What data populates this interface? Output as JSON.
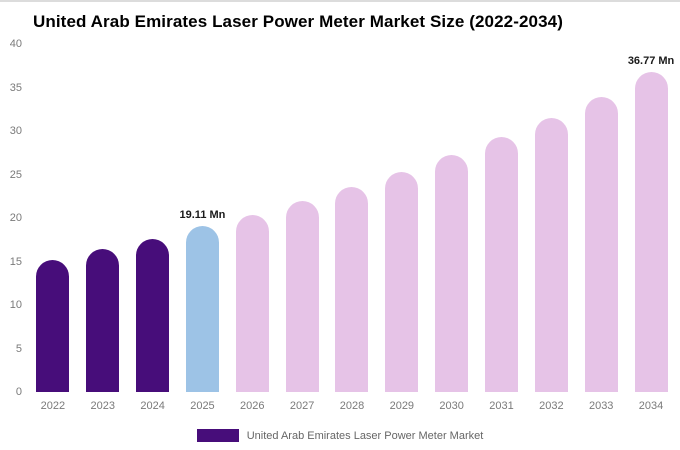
{
  "title": "United Arab Emirates Laser Power Meter Market Size (2022-2034)",
  "legend": {
    "label": "United Arab Emirates Laser Power Meter Market",
    "swatch_color": "#470D7A"
  },
  "colors": {
    "dark_purple": "#470D7A",
    "highlight_blue": "#9DC3E6",
    "light_pink": "#E6C3E7",
    "axis_text": "#7A7A7A",
    "background": "#FFFFFF"
  },
  "chart_data": {
    "type": "bar",
    "title": "United Arab Emirates Laser Power Meter Market Size (2022-2034)",
    "xlabel": "",
    "ylabel": "",
    "categories": [
      "2022",
      "2023",
      "2024",
      "2025",
      "2026",
      "2027",
      "2028",
      "2029",
      "2030",
      "2031",
      "2032",
      "2033",
      "2034"
    ],
    "values": [
      15.2,
      16.4,
      17.6,
      19.11,
      20.4,
      22.0,
      23.6,
      25.3,
      27.2,
      29.3,
      31.5,
      33.9,
      36.77
    ],
    "bar_colors": [
      "#470D7A",
      "#470D7A",
      "#470D7A",
      "#9DC3E6",
      "#E6C3E7",
      "#E6C3E7",
      "#E6C3E7",
      "#E6C3E7",
      "#E6C3E7",
      "#E6C3E7",
      "#E6C3E7",
      "#E6C3E7",
      "#E6C3E7"
    ],
    "value_labels": {
      "2025": "19.11 Mn",
      "2034": "36.77 Mn"
    },
    "ylim": [
      0,
      40
    ],
    "y_ticks": [
      0,
      5,
      10,
      15,
      20,
      25,
      30,
      35,
      40
    ],
    "grid": false,
    "legend_position": "bottom",
    "legend_entries": [
      "United Arab Emirates Laser Power Meter Market"
    ]
  }
}
